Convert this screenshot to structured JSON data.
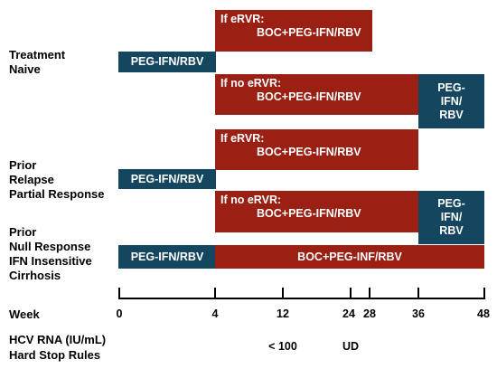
{
  "groups": {
    "naive": {
      "line1": "Treatment",
      "line2": "Naive"
    },
    "relapse": {
      "line1": "Prior",
      "line2": "Relapse",
      "line3": "Partial Response"
    },
    "null": {
      "line1": "Prior",
      "line2": "Null Response",
      "line3": "IFN Insensitive",
      "line4": "Cirrhosis"
    }
  },
  "bars": {
    "naive_lead": "PEG-IFN/RBV",
    "naive_ervr_l1": "If eRVR:",
    "naive_ervr_l2": "BOC+PEG-IFN/RBV",
    "naive_noervr_l1": "If no eRVR:",
    "naive_noervr_l2": "BOC+PEG-IFN/RBV",
    "naive_tail_l1": "PEG-",
    "naive_tail_l2": "IFN/",
    "naive_tail_l3": "RBV",
    "relapse_lead": "PEG-IFN/RBV",
    "relapse_ervr_l1": "If eRVR:",
    "relapse_ervr_l2": "BOC+PEG-IFN/RBV",
    "relapse_noervr_l1": "If no eRVR:",
    "relapse_noervr_l2": "BOC+PEG-IFN/RBV",
    "relapse_tail_l1": "PEG-",
    "relapse_tail_l2": "IFN/",
    "relapse_tail_l3": "RBV",
    "null_lead": "PEG-IFN/RBV",
    "null_main": "BOC+PEG-INF/RBV"
  },
  "axis": {
    "label": "Week",
    "ticks": [
      "0",
      "4",
      "12",
      "24",
      "28",
      "36",
      "48"
    ]
  },
  "rules": {
    "label_l1": "HCV RNA (IU/mL)",
    "label_l2": "Hard Stop Rules",
    "at_week12": "< 100",
    "at_week24": "UD"
  },
  "colors": {
    "treatment_bar": "#9b2014",
    "peg_bar": "#14465f"
  }
}
